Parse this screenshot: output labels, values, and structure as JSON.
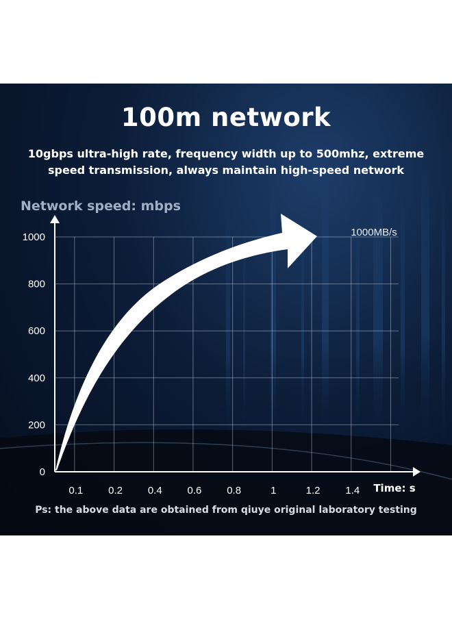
{
  "header": {
    "title": "100m network",
    "subtitle_line1": "10gbps ultra-high rate, frequency width up to 500mhz, extreme",
    "subtitle_line2": "speed transmission, always maintain high-speed network"
  },
  "footer": {
    "note": "Ps: the above data are obtained from qiuye original laboratory testing"
  },
  "colors": {
    "background": "#0c1d38",
    "text": "#ffffff",
    "axis_title": "#9fb0c4",
    "curve": "#ffffff"
  },
  "chart_data": {
    "type": "line",
    "ylabel": "Network speed: mbps",
    "xlabel": "Time: s",
    "x_ticks": [
      "0.1",
      "0.2",
      "0.4",
      "0.6",
      "0.8",
      "1",
      "1.2",
      "1.4"
    ],
    "y_ticks": [
      0,
      200,
      400,
      600,
      800,
      1000
    ],
    "ylim": [
      0,
      1000
    ],
    "annotation": "1000MB/s",
    "grid": true,
    "curve_points": [
      {
        "x": "0",
        "y": 0
      },
      {
        "x": "0.1",
        "y": 330
      },
      {
        "x": "0.2",
        "y": 560
      },
      {
        "x": "0.4",
        "y": 720
      },
      {
        "x": "0.6",
        "y": 830
      },
      {
        "x": "0.8",
        "y": 890
      },
      {
        "x": "1",
        "y": 935
      },
      {
        "x": "1.2",
        "y": 1000
      }
    ]
  }
}
